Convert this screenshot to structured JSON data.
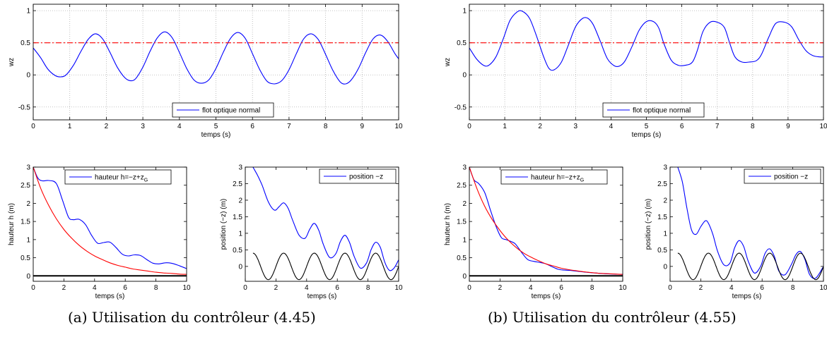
{
  "captions": {
    "a": "(a) Utilisation du contrôleur (4.45)",
    "b": "(b) Utilisation du contrôleur (4.55)"
  },
  "colors": {
    "blue": "#0000ff",
    "red": "#ff0000",
    "black": "#000000",
    "grid": "#b0b0b0"
  },
  "chart_data": [
    {
      "id": "a-top",
      "type": "line",
      "xlabel": "temps (s)",
      "ylabel": "wz",
      "xlim": [
        0,
        10
      ],
      "ylim": [
        -0.7,
        1.1
      ],
      "xticks": [
        "0",
        "1",
        "2",
        "3",
        "4",
        "5",
        "6",
        "7",
        "8",
        "9",
        "10"
      ],
      "yticks": [
        "-0.5",
        "0",
        "0.5",
        "1"
      ],
      "grid": true,
      "legend": {
        "position": "bottom-center",
        "entries": [
          "flot optique normal"
        ]
      },
      "series": [
        {
          "name": "flot optique normal",
          "color": "#0000ff",
          "style": "solid",
          "x": [
            0,
            0.2,
            0.4,
            0.6,
            0.75,
            0.9,
            1.1,
            1.3,
            1.5,
            1.7,
            1.9,
            2.1,
            2.3,
            2.5,
            2.65,
            2.8,
            3.0,
            3.2,
            3.4,
            3.6,
            3.8,
            4.0,
            4.2,
            4.4,
            4.6,
            4.8,
            5.0,
            5.2,
            5.4,
            5.6,
            5.8,
            6.0,
            6.2,
            6.4,
            6.6,
            6.8,
            7.0,
            7.2,
            7.4,
            7.6,
            7.8,
            8.0,
            8.2,
            8.4,
            8.55,
            8.7,
            8.9,
            9.1,
            9.3,
            9.5,
            9.7,
            9.9,
            10.0
          ],
          "y": [
            0.42,
            0.27,
            0.09,
            -0.01,
            -0.03,
            0.0,
            0.15,
            0.36,
            0.55,
            0.64,
            0.56,
            0.35,
            0.12,
            -0.04,
            -0.09,
            -0.06,
            0.12,
            0.37,
            0.58,
            0.67,
            0.58,
            0.35,
            0.1,
            -0.08,
            -0.13,
            -0.08,
            0.1,
            0.35,
            0.57,
            0.66,
            0.57,
            0.33,
            0.08,
            -0.1,
            -0.14,
            -0.09,
            0.08,
            0.33,
            0.56,
            0.64,
            0.55,
            0.32,
            0.07,
            -0.11,
            -0.14,
            -0.08,
            0.1,
            0.35,
            0.56,
            0.62,
            0.52,
            0.33,
            0.25
          ]
        },
        {
          "name": "",
          "color": "#ff0000",
          "style": "dashdot",
          "x": [
            0,
            10
          ],
          "y": [
            0.5,
            0.5
          ]
        }
      ]
    },
    {
      "id": "a-bottom-left",
      "type": "line",
      "xlabel": "temps (s)",
      "ylabel": "hauteur h (m)",
      "xlim": [
        0,
        10
      ],
      "ylim": [
        -0.15,
        3.0
      ],
      "xticks": [
        "0",
        "2",
        "4",
        "6",
        "8",
        "10"
      ],
      "yticks": [
        "0",
        "0.5",
        "1",
        "1.5",
        "2",
        "2.5",
        "3"
      ],
      "grid": false,
      "legend": {
        "position": "top-center",
        "entries": [
          "hauteur h=−z+z"
        ],
        "entry_subscript": "G"
      },
      "series": [
        {
          "name": "hauteur h=−z+z",
          "color": "#0000ff",
          "style": "solid",
          "x": [
            0,
            0.3,
            0.6,
            1.0,
            1.5,
            1.9,
            2.3,
            2.6,
            3.0,
            3.4,
            3.8,
            4.2,
            4.6,
            5.0,
            5.4,
            5.8,
            6.2,
            6.6,
            7.0,
            7.4,
            7.8,
            8.2,
            8.6,
            9.0,
            9.4,
            10.0
          ],
          "y": [
            3.0,
            2.7,
            2.62,
            2.63,
            2.55,
            2.1,
            1.62,
            1.55,
            1.56,
            1.42,
            1.12,
            0.9,
            0.92,
            0.93,
            0.78,
            0.6,
            0.55,
            0.58,
            0.56,
            0.45,
            0.35,
            0.33,
            0.36,
            0.35,
            0.3,
            0.2
          ]
        },
        {
          "name": "",
          "color": "#ff0000",
          "style": "solid",
          "x": [
            0,
            0.5,
            1,
            1.5,
            2,
            2.5,
            3,
            3.5,
            4,
            4.5,
            5,
            5.5,
            6,
            6.5,
            7,
            7.5,
            8,
            8.5,
            9,
            9.5,
            10
          ],
          "y": [
            3.0,
            2.4,
            1.95,
            1.58,
            1.28,
            1.04,
            0.84,
            0.68,
            0.55,
            0.45,
            0.36,
            0.29,
            0.24,
            0.19,
            0.16,
            0.13,
            0.1,
            0.08,
            0.07,
            0.05,
            0.04
          ]
        },
        {
          "name": "",
          "color": "#000000",
          "style": "solid",
          "x": [
            0,
            10
          ],
          "y": [
            0,
            0
          ]
        }
      ]
    },
    {
      "id": "a-bottom-right",
      "type": "line",
      "xlabel": "temps (s)",
      "ylabel": "position (−z) (m)",
      "xlim": [
        0,
        10
      ],
      "ylim": [
        -0.45,
        3.0
      ],
      "xticks": [
        "0",
        "2",
        "4",
        "6",
        "8",
        "10"
      ],
      "yticks": [
        "0",
        "0.5",
        "1",
        "1.5",
        "2",
        "2.5",
        "3"
      ],
      "grid": false,
      "legend": {
        "position": "top-right",
        "entries": [
          "position  −z"
        ]
      },
      "series": [
        {
          "name": "position  −z",
          "color": "#0000ff",
          "style": "solid",
          "x": [
            0.5,
            0.8,
            1.1,
            1.5,
            1.9,
            2.2,
            2.5,
            2.8,
            3.1,
            3.5,
            3.9,
            4.2,
            4.5,
            4.8,
            5.1,
            5.5,
            5.9,
            6.2,
            6.5,
            6.8,
            7.1,
            7.5,
            7.9,
            8.2,
            8.5,
            8.8,
            9.1,
            9.4,
            9.7,
            10.0
          ],
          "y": [
            3.0,
            2.75,
            2.45,
            1.95,
            1.7,
            1.8,
            1.92,
            1.75,
            1.38,
            0.95,
            0.85,
            1.12,
            1.3,
            1.08,
            0.65,
            0.27,
            0.38,
            0.75,
            0.94,
            0.72,
            0.3,
            -0.05,
            0.1,
            0.5,
            0.73,
            0.58,
            0.12,
            -0.12,
            -0.05,
            0.2
          ]
        },
        {
          "name": "",
          "color": "#000000",
          "style": "solid",
          "kind": "sine",
          "amplitude": 0.4,
          "period": 2.0,
          "x0": 0.5,
          "x1": 10
        }
      ]
    },
    {
      "id": "b-top",
      "type": "line",
      "xlabel": "temps (s)",
      "ylabel": "wz",
      "xlim": [
        0,
        10
      ],
      "ylim": [
        -0.7,
        1.1
      ],
      "xticks": [
        "0",
        "1",
        "2",
        "3",
        "4",
        "5",
        "6",
        "7",
        "8",
        "9",
        "10"
      ],
      "yticks": [
        "-0.5",
        "0",
        "0.5",
        "1"
      ],
      "grid": true,
      "legend": {
        "position": "bottom-center",
        "entries": [
          "flot optique normal"
        ]
      },
      "series": [
        {
          "name": "flot optique normal",
          "color": "#0000ff",
          "style": "solid",
          "x": [
            0,
            0.2,
            0.4,
            0.55,
            0.75,
            0.95,
            1.15,
            1.35,
            1.5,
            1.7,
            1.9,
            2.1,
            2.25,
            2.4,
            2.6,
            2.8,
            3.0,
            3.2,
            3.35,
            3.5,
            3.7,
            3.9,
            4.1,
            4.25,
            4.4,
            4.6,
            4.8,
            5.0,
            5.2,
            5.35,
            5.5,
            5.7,
            5.9,
            6.1,
            6.3,
            6.45,
            6.6,
            6.8,
            7.0,
            7.2,
            7.35,
            7.5,
            7.7,
            7.9,
            8.1,
            8.25,
            8.45,
            8.65,
            8.9,
            9.1,
            9.3,
            9.5,
            9.7,
            9.9,
            10.0
          ],
          "y": [
            0.42,
            0.25,
            0.15,
            0.15,
            0.28,
            0.55,
            0.85,
            0.98,
            0.99,
            0.88,
            0.6,
            0.28,
            0.1,
            0.08,
            0.2,
            0.47,
            0.75,
            0.88,
            0.88,
            0.78,
            0.52,
            0.25,
            0.14,
            0.14,
            0.22,
            0.45,
            0.7,
            0.83,
            0.83,
            0.73,
            0.48,
            0.23,
            0.15,
            0.15,
            0.2,
            0.4,
            0.68,
            0.82,
            0.82,
            0.74,
            0.5,
            0.28,
            0.2,
            0.2,
            0.22,
            0.32,
            0.58,
            0.8,
            0.82,
            0.75,
            0.55,
            0.38,
            0.3,
            0.28,
            0.28
          ]
        },
        {
          "name": "",
          "color": "#ff0000",
          "style": "dashdot",
          "x": [
            0,
            10
          ],
          "y": [
            0.5,
            0.5
          ]
        }
      ]
    },
    {
      "id": "b-bottom-left",
      "type": "line",
      "xlabel": "temps (s)",
      "ylabel": "hauteur h (m)",
      "xlim": [
        0,
        10
      ],
      "ylim": [
        -0.15,
        3.0
      ],
      "xticks": [
        "0",
        "2",
        "4",
        "6",
        "8",
        "10"
      ],
      "yticks": [
        "0",
        "0.5",
        "1",
        "1.5",
        "2",
        "2.5",
        "3"
      ],
      "grid": false,
      "legend": {
        "position": "top-center",
        "entries": [
          "hauteur h=−z+z"
        ],
        "entry_subscript": "G"
      },
      "series": [
        {
          "name": "hauteur h=−z+z",
          "color": "#0000ff",
          "style": "solid",
          "x": [
            0,
            0.3,
            0.6,
            1.0,
            1.4,
            1.8,
            2.1,
            2.4,
            2.7,
            3.0,
            3.4,
            3.8,
            4.2,
            4.6,
            5.0,
            5.4,
            5.8,
            6.2,
            6.6,
            7.0,
            7.6,
            8.2,
            8.8,
            9.4,
            10.0
          ],
          "y": [
            3.0,
            2.65,
            2.55,
            2.3,
            1.78,
            1.3,
            1.05,
            1.0,
            0.95,
            0.88,
            0.65,
            0.45,
            0.4,
            0.37,
            0.33,
            0.25,
            0.18,
            0.16,
            0.15,
            0.13,
            0.1,
            0.08,
            0.06,
            0.05,
            0.04
          ]
        },
        {
          "name": "",
          "color": "#ff0000",
          "style": "solid",
          "x": [
            0,
            0.5,
            1,
            1.5,
            2,
            2.5,
            3,
            3.5,
            4,
            4.5,
            5,
            5.5,
            6,
            6.5,
            7,
            7.5,
            8,
            8.5,
            9,
            9.5,
            10
          ],
          "y": [
            3.0,
            2.4,
            1.92,
            1.55,
            1.25,
            1.0,
            0.8,
            0.64,
            0.52,
            0.42,
            0.33,
            0.27,
            0.21,
            0.17,
            0.14,
            0.11,
            0.09,
            0.07,
            0.06,
            0.05,
            0.04
          ]
        },
        {
          "name": "",
          "color": "#000000",
          "style": "solid",
          "x": [
            0,
            10
          ],
          "y": [
            0,
            0
          ]
        }
      ]
    },
    {
      "id": "b-bottom-right",
      "type": "line",
      "xlabel": "temps (s)",
      "ylabel": "position (−z) (m)",
      "xlim": [
        0,
        10
      ],
      "ylim": [
        -0.45,
        3.0
      ],
      "xticks": [
        "0",
        "2",
        "4",
        "6",
        "8",
        "10"
      ],
      "yticks": [
        "0",
        "0.5",
        "1",
        "1.5",
        "2",
        "2.5",
        "3"
      ],
      "grid": false,
      "legend": {
        "position": "top-right",
        "entries": [
          "position  −z"
        ]
      },
      "series": [
        {
          "name": "position  −z",
          "color": "#0000ff",
          "style": "solid",
          "x": [
            0.5,
            0.8,
            1.1,
            1.4,
            1.7,
            2.0,
            2.3,
            2.5,
            2.8,
            3.1,
            3.5,
            3.9,
            4.2,
            4.5,
            4.8,
            5.1,
            5.5,
            5.9,
            6.2,
            6.5,
            6.8,
            7.1,
            7.5,
            7.9,
            8.2,
            8.5,
            8.8,
            9.1,
            9.5,
            10.0
          ],
          "y": [
            3.0,
            2.55,
            1.75,
            1.1,
            0.97,
            1.2,
            1.38,
            1.3,
            0.95,
            0.45,
            0.05,
            0.1,
            0.55,
            0.78,
            0.6,
            0.15,
            -0.2,
            0.0,
            0.4,
            0.53,
            0.3,
            -0.15,
            -0.25,
            0.05,
            0.35,
            0.45,
            0.2,
            -0.25,
            -0.35,
            0.0
          ]
        },
        {
          "name": "",
          "color": "#000000",
          "style": "solid",
          "kind": "sine",
          "amplitude": 0.4,
          "period": 2.0,
          "x0": 0.5,
          "x1": 10
        }
      ]
    }
  ]
}
